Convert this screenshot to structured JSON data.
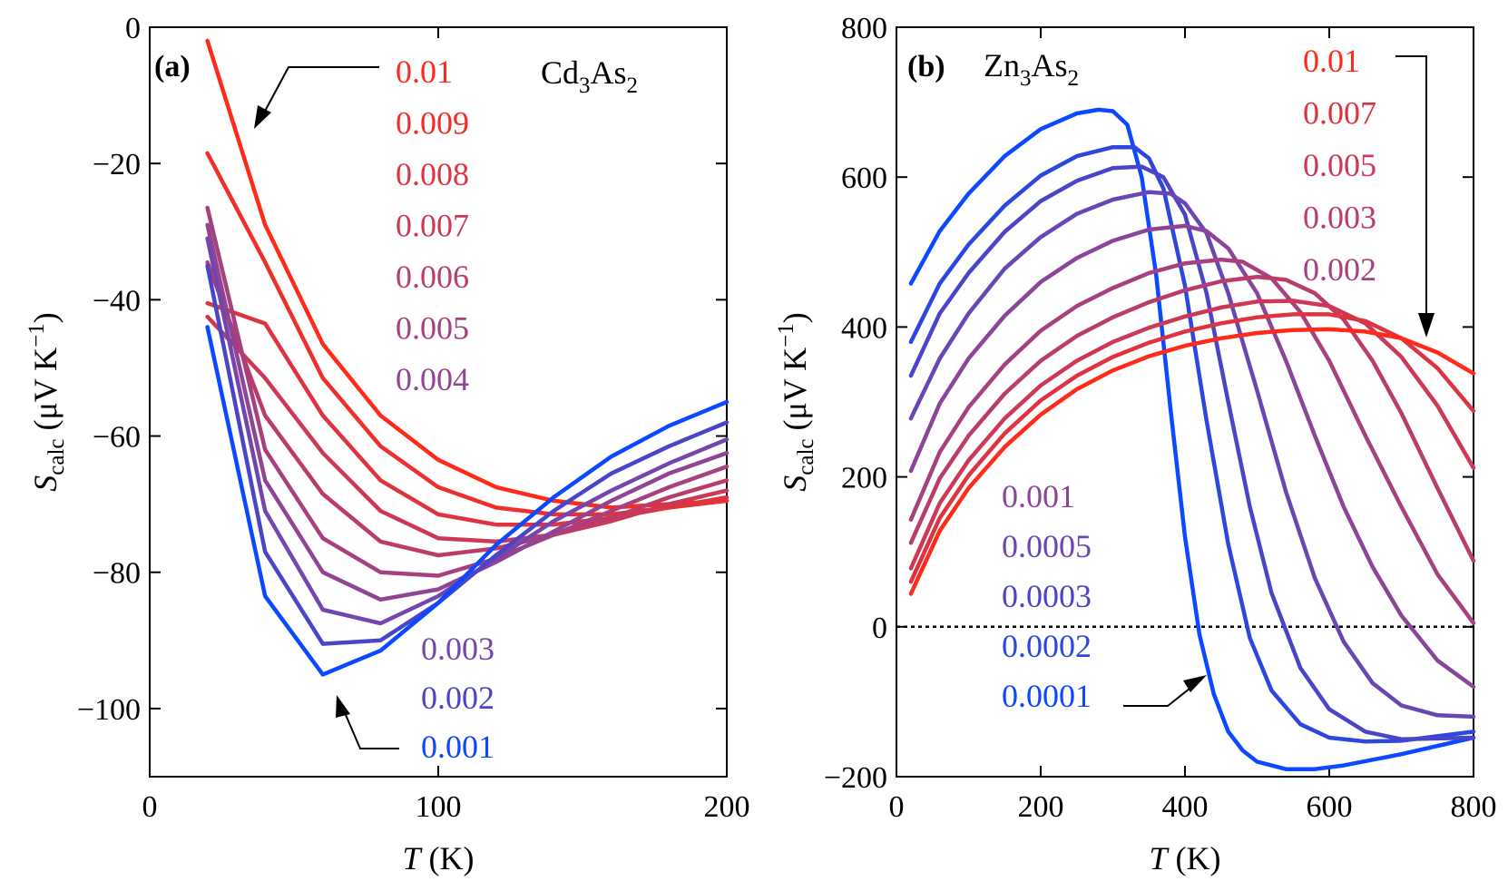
{
  "chart_data": [
    {
      "type": "line",
      "panel_label": "(a)",
      "title": "Cd3As2",
      "title_parts": {
        "base1": "Cd",
        "sub1": "3",
        "base2": "As",
        "sub2": "2"
      },
      "xlabel": {
        "var": "T",
        "unit": " (K)"
      },
      "ylabel": {
        "var": "S",
        "sub": "calc",
        "unit": " (μV K",
        "sup": "−1",
        "close": ")"
      },
      "xlim": [
        0,
        200
      ],
      "ylim": [
        -110,
        0
      ],
      "xticks": [
        {
          "value": 0,
          "label": "0"
        },
        {
          "value": 100,
          "label": "100"
        },
        {
          "value": 200,
          "label": "200"
        }
      ],
      "yticks": [
        {
          "value": 0,
          "label": "0"
        },
        {
          "value": -20,
          "label": "−20"
        },
        {
          "value": -40,
          "label": "−40"
        },
        {
          "value": -60,
          "label": "−60"
        },
        {
          "value": -80,
          "label": "−80"
        },
        {
          "value": -100,
          "label": "−100"
        }
      ],
      "x": [
        20,
        40,
        60,
        80,
        100,
        120,
        140,
        160,
        180,
        200
      ],
      "series": [
        {
          "name": "0.01",
          "color": "#ff2a1a",
          "values": [
            -2,
            -29,
            -46.5,
            -57,
            -63.5,
            -67.5,
            -69.5,
            -70.5,
            -70,
            -69.5
          ]
        },
        {
          "name": "0.009",
          "color": "#ee2f2b",
          "values": [
            -18.5,
            -34.5,
            -51.5,
            -61.5,
            -67.5,
            -70.5,
            -71.5,
            -71.5,
            -70.5,
            -69.5
          ]
        },
        {
          "name": "0.008",
          "color": "#de3440",
          "values": [
            -40.5,
            -43.5,
            -57,
            -66.5,
            -71.5,
            -73,
            -73,
            -72,
            -70.5,
            -69
          ]
        },
        {
          "name": "0.007",
          "color": "#cc3856",
          "values": [
            -42.5,
            -51.5,
            -62.5,
            -71,
            -75,
            -75.5,
            -74.5,
            -72.5,
            -70,
            -68
          ]
        },
        {
          "name": "0.006",
          "color": "#ba3c6a",
          "values": [
            -34.5,
            -57,
            -68.5,
            -75.5,
            -77.5,
            -76.5,
            -74.5,
            -72,
            -69,
            -66.5
          ]
        },
        {
          "name": "0.005",
          "color": "#a7407e",
          "values": [
            -26.5,
            -62,
            -75,
            -80,
            -80.5,
            -78,
            -74.5,
            -71,
            -67.5,
            -64.5
          ]
        },
        {
          "name": "0.004",
          "color": "#904494",
          "values": [
            -29,
            -66.5,
            -80,
            -84,
            -82.5,
            -78.5,
            -74,
            -69.5,
            -65.5,
            -62.5
          ]
        },
        {
          "name": "0.003",
          "color": "#7346ad",
          "values": [
            -31,
            -71,
            -85.5,
            -87.5,
            -83.5,
            -78,
            -72.5,
            -68,
            -64,
            -60.5
          ]
        },
        {
          "name": "0.002",
          "color": "#4a44c8",
          "values": [
            -35,
            -77,
            -90.5,
            -90,
            -84.5,
            -77.5,
            -71,
            -65.5,
            -61.5,
            -58
          ]
        },
        {
          "name": "0.001",
          "color": "#0b48ff",
          "values": [
            -44,
            -83.5,
            -95,
            -91.5,
            -84.5,
            -76,
            -69,
            -63,
            -58.5,
            -55
          ]
        }
      ]
    },
    {
      "type": "line",
      "panel_label": "(b)",
      "title": "Zn3As2",
      "title_parts": {
        "base1": "Zn",
        "sub1": "3",
        "base2": "As",
        "sub2": "2"
      },
      "xlabel": {
        "var": "T",
        "unit": " (K)"
      },
      "ylabel": {
        "var": "S",
        "sub": "calc",
        "unit": " (μV K",
        "sup": "−1",
        "close": ")"
      },
      "xlim": [
        0,
        800
      ],
      "ylim": [
        -200,
        800
      ],
      "xticks": [
        {
          "value": 0,
          "label": "0"
        },
        {
          "value": 200,
          "label": "200"
        },
        {
          "value": 400,
          "label": "400"
        },
        {
          "value": 600,
          "label": "600"
        },
        {
          "value": 800,
          "label": "800"
        }
      ],
      "yticks": [
        {
          "value": -200,
          "label": "−200"
        },
        {
          "value": 0,
          "label": "0"
        },
        {
          "value": 200,
          "label": "200"
        },
        {
          "value": 400,
          "label": "400"
        },
        {
          "value": 600,
          "label": "600"
        },
        {
          "value": 800,
          "label": "800"
        }
      ],
      "zero_line": true,
      "series": [
        {
          "name": "0.0001",
          "color": "#0b48ff",
          "x": [
            20,
            60,
            100,
            150,
            200,
            250,
            280,
            300,
            320,
            340,
            360,
            380,
            400,
            420,
            440,
            460,
            480,
            500,
            540,
            580,
            620,
            700,
            800
          ],
          "values": [
            458,
            528,
            578,
            628,
            664,
            685,
            690,
            688,
            670,
            600,
            470,
            290,
            120,
            -10,
            -90,
            -140,
            -165,
            -180,
            -190,
            -190,
            -185,
            -170,
            -148
          ]
        },
        {
          "name": "0.0002",
          "color": "#2d46e0",
          "x": [
            20,
            60,
            100,
            150,
            200,
            250,
            300,
            330,
            350,
            370,
            400,
            430,
            460,
            490,
            520,
            560,
            600,
            650,
            700,
            800
          ],
          "values": [
            380,
            458,
            510,
            562,
            602,
            628,
            640,
            640,
            625,
            585,
            455,
            275,
            110,
            -15,
            -85,
            -130,
            -148,
            -153,
            -152,
            -140
          ]
        },
        {
          "name": "0.0003",
          "color": "#4a44c8",
          "x": [
            20,
            60,
            100,
            150,
            200,
            250,
            300,
            340,
            370,
            400,
            430,
            460,
            490,
            520,
            560,
            600,
            650,
            700,
            800
          ],
          "values": [
            335,
            418,
            472,
            527,
            568,
            595,
            612,
            614,
            600,
            550,
            445,
            300,
            160,
            45,
            -55,
            -110,
            -140,
            -150,
            -148
          ]
        },
        {
          "name": "0.0005",
          "color": "#6a46b4",
          "x": [
            20,
            60,
            100,
            150,
            200,
            250,
            300,
            350,
            380,
            400,
            430,
            460,
            500,
            540,
            580,
            620,
            660,
            700,
            750,
            800
          ],
          "values": [
            278,
            358,
            418,
            478,
            520,
            551,
            570,
            580,
            578,
            565,
            525,
            445,
            315,
            180,
            65,
            -20,
            -75,
            -105,
            -118,
            -120
          ]
        },
        {
          "name": "0.001",
          "color": "#8a4598",
          "x": [
            20,
            60,
            100,
            150,
            200,
            250,
            300,
            350,
            400,
            430,
            460,
            500,
            540,
            580,
            620,
            660,
            700,
            750,
            800
          ],
          "values": [
            208,
            298,
            358,
            415,
            460,
            492,
            515,
            530,
            535,
            528,
            505,
            445,
            355,
            255,
            160,
            80,
            15,
            -45,
            -80
          ]
        },
        {
          "name": "0.002",
          "color": "#a7407e",
          "x": [
            20,
            60,
            100,
            150,
            200,
            250,
            300,
            350,
            400,
            450,
            480,
            520,
            560,
            600,
            650,
            700,
            750,
            800
          ],
          "values": [
            143,
            233,
            293,
            350,
            395,
            428,
            452,
            472,
            485,
            490,
            487,
            465,
            420,
            355,
            255,
            160,
            70,
            5
          ]
        },
        {
          "name": "0.003",
          "color": "#ba3c6a",
          "x": [
            20,
            60,
            100,
            150,
            200,
            250,
            300,
            350,
            400,
            450,
            500,
            540,
            580,
            620,
            660,
            700,
            750,
            800
          ],
          "values": [
            112,
            198,
            255,
            311,
            355,
            388,
            413,
            433,
            449,
            461,
            467,
            463,
            445,
            410,
            355,
            285,
            185,
            88
          ]
        },
        {
          "name": "0.005",
          "color": "#cc3856",
          "x": [
            20,
            60,
            100,
            150,
            200,
            250,
            300,
            350,
            400,
            450,
            500,
            550,
            600,
            650,
            700,
            750,
            800
          ],
          "values": [
            78,
            165,
            222,
            278,
            322,
            355,
            380,
            399,
            414,
            426,
            434,
            435,
            428,
            405,
            360,
            295,
            212
          ]
        },
        {
          "name": "0.007",
          "color": "#de3440",
          "x": [
            20,
            60,
            100,
            150,
            200,
            250,
            300,
            350,
            400,
            450,
            500,
            550,
            600,
            650,
            700,
            750,
            800
          ],
          "values": [
            60,
            145,
            202,
            258,
            302,
            335,
            360,
            379,
            394,
            405,
            413,
            417,
            417,
            408,
            385,
            345,
            288
          ]
        },
        {
          "name": "0.01",
          "color": "#ff2a1a",
          "x": [
            20,
            60,
            100,
            150,
            200,
            250,
            300,
            350,
            400,
            450,
            500,
            550,
            600,
            650,
            700,
            750,
            800
          ],
          "values": [
            44,
            128,
            185,
            240,
            283,
            317,
            342,
            361,
            375,
            385,
            392,
            396,
            397,
            394,
            385,
            366,
            338
          ]
        }
      ]
    }
  ],
  "legend_a_top": [
    {
      "text": "0.01",
      "color": "#ff2a1a"
    },
    {
      "text": "0.009",
      "color": "#ee2f2b"
    },
    {
      "text": "0.008",
      "color": "#de3440"
    },
    {
      "text": "0.007",
      "color": "#cc3856"
    },
    {
      "text": "0.006",
      "color": "#ba3c6a"
    },
    {
      "text": "0.005",
      "color": "#a7407e"
    },
    {
      "text": "0.004",
      "color": "#904494"
    }
  ],
  "legend_a_bottom": [
    {
      "text": "0.003",
      "color": "#7346ad"
    },
    {
      "text": "0.002",
      "color": "#4a44c8"
    },
    {
      "text": "0.001",
      "color": "#0b48ff"
    }
  ],
  "legend_b_top": [
    {
      "text": "0.01",
      "color": "#ff2a1a"
    },
    {
      "text": "0.007",
      "color": "#de3440"
    },
    {
      "text": "0.005",
      "color": "#cc3856"
    },
    {
      "text": "0.003",
      "color": "#ba3c6a"
    },
    {
      "text": "0.002",
      "color": "#a7407e"
    }
  ],
  "legend_b_bottom": [
    {
      "text": "0.001",
      "color": "#8a4598"
    },
    {
      "text": "0.0005",
      "color": "#6a46b4"
    },
    {
      "text": "0.0003",
      "color": "#4a44c8"
    },
    {
      "text": "0.0002",
      "color": "#2d46e0"
    },
    {
      "text": "0.0001",
      "color": "#0b48ff"
    }
  ]
}
